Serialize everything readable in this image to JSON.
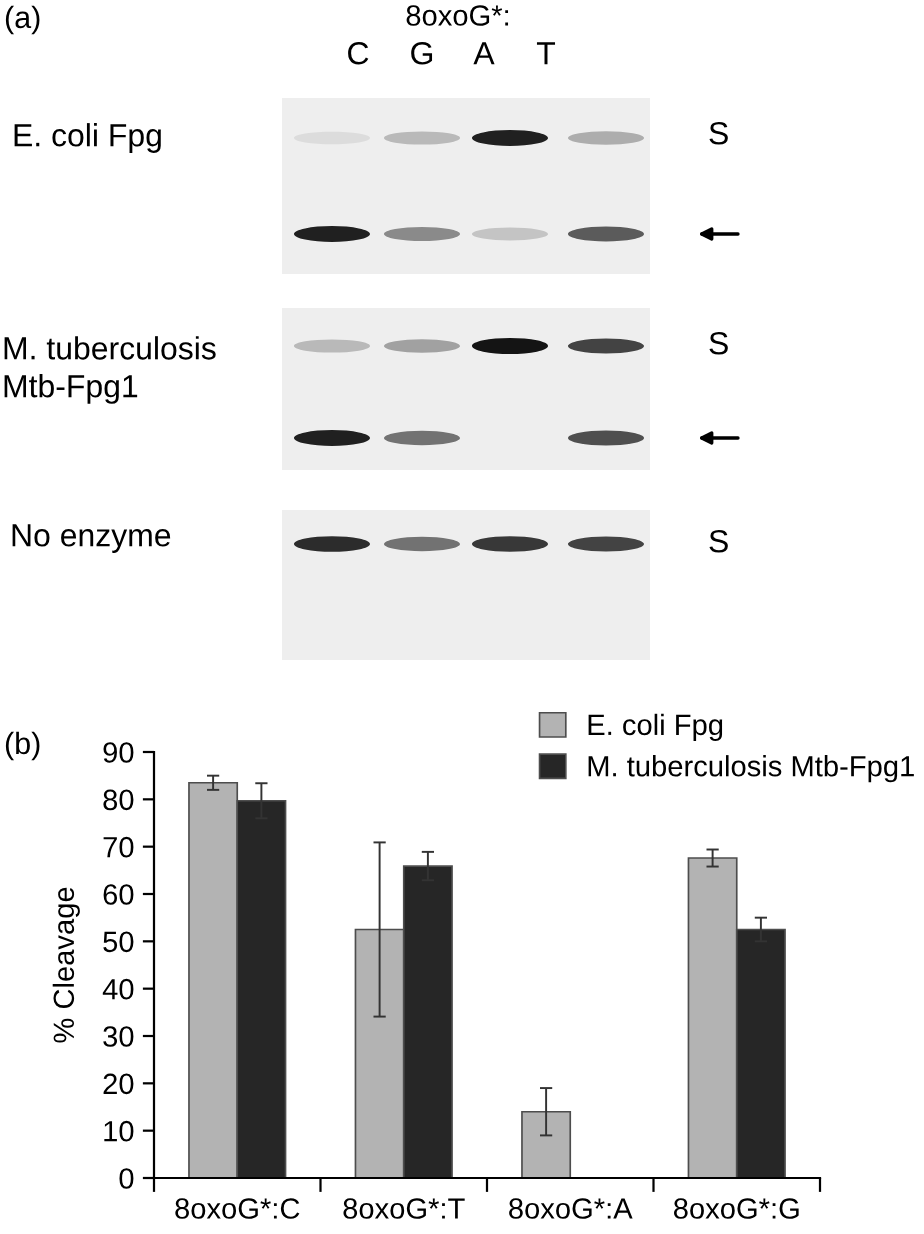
{
  "chart_data": [
    {
      "type": "other",
      "title": "(a)",
      "annotations": [
        "8oxoG*:",
        "C",
        "G",
        "A",
        "T",
        "E. coli Fpg",
        "S",
        "M. tuberculosis\nMtb-Fpg1",
        "S",
        "No enzyme",
        "S"
      ]
    },
    {
      "type": "bar",
      "title": "(b)",
      "ylabel": "% Cleavage",
      "categories": [
        "8oxoG*:C",
        "8oxoG*:T",
        "8oxoG*:A",
        "8oxoG*:G"
      ],
      "series": [
        {
          "name": "E. coli Fpg",
          "color": "#b3b3b3",
          "values": [
            83.5,
            52.5,
            14.0,
            67.6
          ],
          "errors": [
            1.5,
            18.4,
            5.0,
            1.8
          ]
        },
        {
          "name": "M. tuberculosis Mtb-Fpg1",
          "color": "#262626",
          "values": [
            79.7,
            65.9,
            null,
            52.5
          ],
          "errors": [
            3.7,
            3.0,
            null,
            2.5
          ]
        }
      ],
      "ylim": [
        0,
        90
      ],
      "yticks": [
        0,
        10,
        20,
        30,
        40,
        50,
        60,
        70,
        80,
        90
      ],
      "grid": false,
      "legend": "top right"
    }
  ]
}
